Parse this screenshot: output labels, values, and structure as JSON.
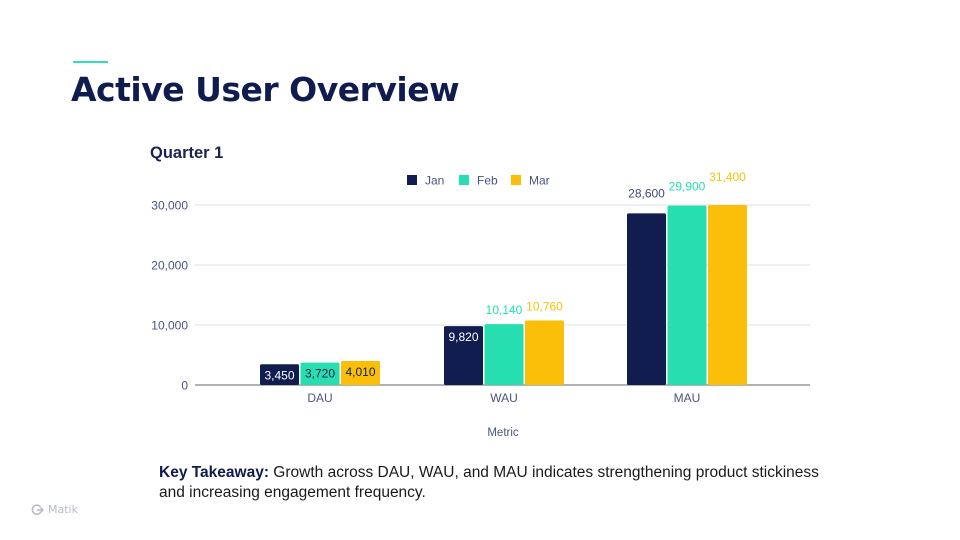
{
  "slide": {
    "title": "Active User Overview",
    "takeaway_label": "Key Takeaway:",
    "takeaway_text": " Growth across DAU, WAU, and MAU indicates strengthening product stickiness and increasing engagement frequency.",
    "logo_text": "Matik",
    "logo_icon": "matik-logo-icon"
  },
  "colors": {
    "title": "#0f1c4d",
    "accent": "#2ee0b4",
    "Jan": "#111d4f",
    "Feb": "#26deb0",
    "Mar": "#fbbf0a",
    "axis_text": "#4a5580"
  },
  "chart_data": {
    "type": "bar",
    "title": "Quarter 1",
    "xlabel": "Metric",
    "ylabel": "",
    "categories": [
      "DAU",
      "WAU",
      "MAU"
    ],
    "series": [
      {
        "name": "Jan",
        "values": [
          3450,
          9820,
          28600
        ],
        "labels": [
          "3,450",
          "9,820",
          "28,600"
        ]
      },
      {
        "name": "Feb",
        "values": [
          3720,
          10140,
          29900
        ],
        "labels": [
          "3,720",
          "10,140",
          "29,900"
        ]
      },
      {
        "name": "Mar",
        "values": [
          4010,
          10760,
          31400
        ],
        "labels": [
          "4,010",
          "10,760",
          "31,400"
        ]
      }
    ],
    "ylim": [
      0,
      30000
    ],
    "yticks": [
      0,
      10000,
      20000,
      30000
    ],
    "ytick_labels": [
      "0",
      "10,000",
      "20,000",
      "30,000"
    ],
    "grid": true,
    "legend": "top-center"
  }
}
